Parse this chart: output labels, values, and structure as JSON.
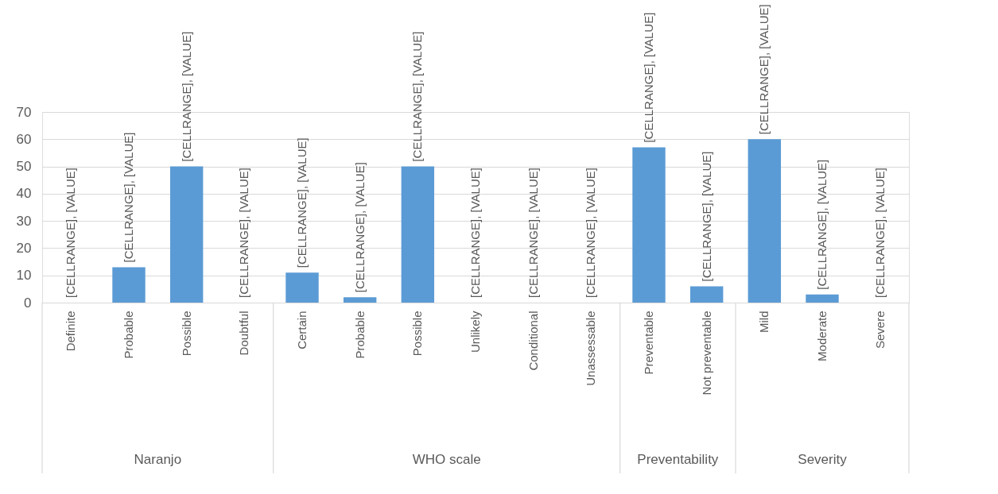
{
  "chart_data": {
    "type": "bar",
    "categories": [
      "Definite",
      "Probable",
      "Possible",
      "Doubtful",
      "Certain",
      "Probable",
      "Possible",
      "Unlikely",
      "Conditional",
      "Unassessable",
      "Preventable",
      "Not preventable",
      "Mild",
      "Moderate",
      "Severe"
    ],
    "values": [
      0,
      13,
      50,
      0,
      11,
      2,
      50,
      0,
      0,
      0,
      57,
      6,
      60,
      3,
      0
    ],
    "value_labels": [
      "[CELLRANGE], [VALUE]",
      "[CELLRANGE], [VALUE]",
      "[CELLRANGE], [VALUE]",
      "[CELLRANGE], [VALUE]",
      "[CELLRANGE], [VALUE]",
      "[CELLRANGE], [VALUE]",
      "[CELLRANGE], [VALUE]",
      "[CELLRANGE], [VALUE]",
      "[CELLRANGE], [VALUE]",
      "[CELLRANGE], [VALUE]",
      "[CELLRANGE], [VALUE]",
      "[CELLRANGE], [VALUE]",
      "[CELLRANGE], [VALUE]",
      "[CELLRANGE], [VALUE]",
      "[CELLRANGE], [VALUE]"
    ],
    "color": "#5b9bd5",
    "ylim": [
      0,
      70
    ],
    "yticks": [
      0,
      10,
      20,
      30,
      40,
      50,
      60,
      70
    ],
    "grid": "y",
    "annotations": [
      "Naranjo",
      "WHO scale",
      "Preventability",
      "Severity"
    ]
  }
}
